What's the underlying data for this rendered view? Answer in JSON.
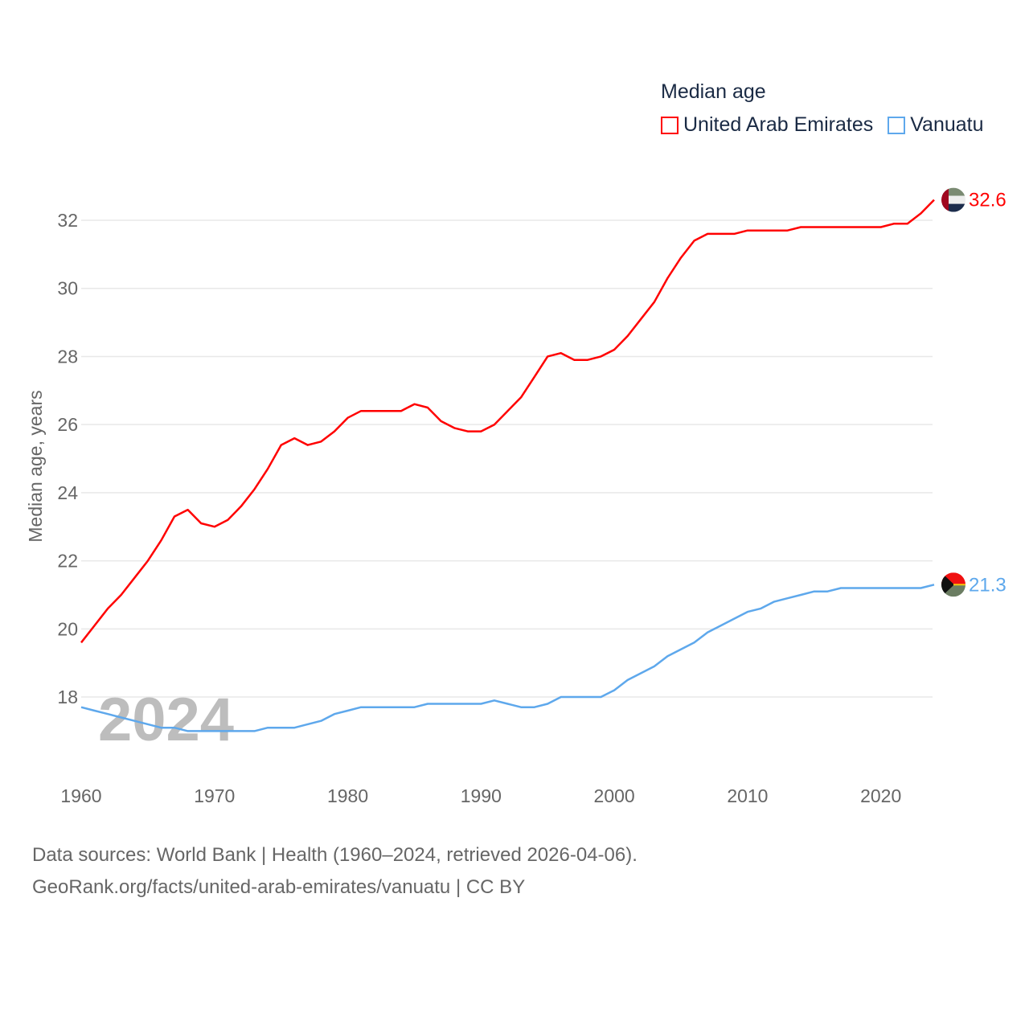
{
  "chart_data": {
    "type": "line",
    "title": "Median age",
    "ylabel": "Median age, years",
    "xlabel": "",
    "ylim": [
      16.5,
      33
    ],
    "xlim": [
      1960,
      2024
    ],
    "yticks": [
      18,
      20,
      22,
      24,
      26,
      28,
      30,
      32
    ],
    "xticks": [
      1960,
      1970,
      1980,
      1990,
      2000,
      2010,
      2020
    ],
    "grid": true,
    "legend_position": "top-right",
    "year_watermark": "2024",
    "x": [
      1960,
      1961,
      1962,
      1963,
      1964,
      1965,
      1966,
      1967,
      1968,
      1969,
      1970,
      1971,
      1972,
      1973,
      1974,
      1975,
      1976,
      1977,
      1978,
      1979,
      1980,
      1981,
      1982,
      1983,
      1984,
      1985,
      1986,
      1987,
      1988,
      1989,
      1990,
      1991,
      1992,
      1993,
      1994,
      1995,
      1996,
      1997,
      1998,
      1999,
      2000,
      2001,
      2002,
      2003,
      2004,
      2005,
      2006,
      2007,
      2008,
      2009,
      2010,
      2011,
      2012,
      2013,
      2014,
      2015,
      2016,
      2017,
      2018,
      2019,
      2020,
      2021,
      2022,
      2023,
      2024
    ],
    "series": [
      {
        "name": "United Arab Emirates",
        "color": "#ff0000",
        "end_label": "32.6",
        "values": [
          19.6,
          20.1,
          20.6,
          21.0,
          21.5,
          22.0,
          22.6,
          23.3,
          23.5,
          23.1,
          23.0,
          23.2,
          23.6,
          24.1,
          24.7,
          25.4,
          25.6,
          25.4,
          25.5,
          25.8,
          26.2,
          26.4,
          26.4,
          26.4,
          26.4,
          26.6,
          26.5,
          26.1,
          25.9,
          25.8,
          25.8,
          26.0,
          26.4,
          26.8,
          27.4,
          28.0,
          28.1,
          27.9,
          27.9,
          28.0,
          28.2,
          28.6,
          29.1,
          29.6,
          30.3,
          30.9,
          31.4,
          31.6,
          31.6,
          31.6,
          31.7,
          31.7,
          31.7,
          31.7,
          31.8,
          31.8,
          31.8,
          31.8,
          31.8,
          31.8,
          31.8,
          31.9,
          31.9,
          32.2,
          32.6
        ]
      },
      {
        "name": "Vanuatu",
        "color": "#5ea8ec",
        "end_label": "21.3",
        "values": [
          17.7,
          17.6,
          17.5,
          17.4,
          17.3,
          17.2,
          17.1,
          17.1,
          17.0,
          17.0,
          17.0,
          17.0,
          17.0,
          17.0,
          17.1,
          17.1,
          17.1,
          17.2,
          17.3,
          17.5,
          17.6,
          17.7,
          17.7,
          17.7,
          17.7,
          17.7,
          17.8,
          17.8,
          17.8,
          17.8,
          17.8,
          17.9,
          17.8,
          17.7,
          17.7,
          17.8,
          18.0,
          18.0,
          18.0,
          18.0,
          18.2,
          18.5,
          18.7,
          18.9,
          19.2,
          19.4,
          19.6,
          19.9,
          20.1,
          20.3,
          20.5,
          20.6,
          20.8,
          20.9,
          21.0,
          21.1,
          21.1,
          21.2,
          21.2,
          21.2,
          21.2,
          21.2,
          21.2,
          21.2,
          21.3
        ]
      }
    ]
  },
  "footer": {
    "line1": "Data sources: World Bank | Health (1960–2024, retrieved 2026-04-06).",
    "line2": "GeoRank.org/facts/united-arab-emirates/vanuatu | CC BY"
  }
}
